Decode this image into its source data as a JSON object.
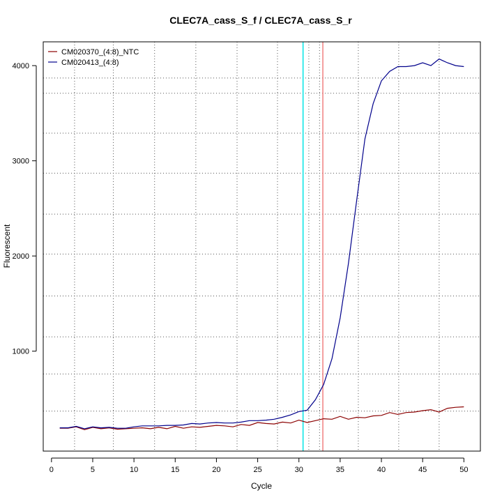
{
  "chart_data": {
    "type": "line",
    "title": "CLEC7A_cass_S_f / CLEC7A_cass_S_r",
    "xlabel": "Cycle",
    "ylabel": "Fluorescent",
    "xlim": [
      -1,
      52
    ],
    "ylim": [
      -50,
      4250
    ],
    "x_ticks": [
      0,
      5,
      10,
      15,
      20,
      25,
      30,
      35,
      40,
      45,
      50
    ],
    "y_ticks": [
      1000,
      2000,
      3000,
      4000
    ],
    "grid_x": [
      2.8,
      7.5,
      12.5,
      17.5,
      22.5,
      27.4,
      31.2,
      32.5,
      37.2,
      42.1,
      47.0
    ],
    "grid_y": [
      370,
      760,
      1150,
      1580,
      2020,
      2440,
      2870,
      3290,
      3710,
      3870
    ],
    "threshold_lines": [
      {
        "x": 30.5,
        "color": "#00e5e5"
      },
      {
        "x": 32.9,
        "color": "#f08080"
      }
    ],
    "legend_position": "top-left",
    "series": [
      {
        "name": "CM020370_(4:8)_NTC",
        "color": "#8b0000",
        "x": [
          1,
          2,
          3,
          4,
          5,
          6,
          7,
          8,
          9,
          10,
          11,
          12,
          13,
          14,
          15,
          16,
          17,
          18,
          19,
          20,
          21,
          22,
          23,
          24,
          25,
          26,
          27,
          28,
          29,
          30,
          31,
          32,
          33,
          34,
          35,
          36,
          37,
          38,
          39,
          40,
          41,
          42,
          43,
          44,
          45,
          46,
          47,
          48,
          49,
          50
        ],
        "values": [
          190,
          190,
          205,
          175,
          200,
          185,
          195,
          180,
          185,
          190,
          195,
          185,
          200,
          185,
          210,
          190,
          205,
          200,
          210,
          220,
          215,
          205,
          230,
          220,
          250,
          240,
          235,
          255,
          245,
          275,
          250,
          270,
          290,
          285,
          315,
          285,
          305,
          300,
          320,
          325,
          355,
          335,
          355,
          360,
          375,
          385,
          360,
          400,
          410,
          415
        ]
      },
      {
        "name": "CM020413_(4:8)",
        "color": "#00008b",
        "x": [
          1,
          2,
          3,
          4,
          5,
          6,
          7,
          8,
          9,
          10,
          11,
          12,
          13,
          14,
          15,
          16,
          17,
          18,
          19,
          20,
          21,
          22,
          23,
          24,
          25,
          26,
          27,
          28,
          29,
          30,
          31,
          32,
          33,
          34,
          35,
          36,
          37,
          38,
          39,
          40,
          41,
          42,
          43,
          44,
          45,
          46,
          47,
          48,
          49,
          50
        ],
        "values": [
          195,
          195,
          210,
          185,
          205,
          195,
          200,
          190,
          190,
          205,
          215,
          215,
          215,
          220,
          220,
          225,
          240,
          235,
          245,
          250,
          245,
          245,
          255,
          270,
          270,
          275,
          285,
          305,
          330,
          365,
          380,
          490,
          650,
          920,
          1350,
          1920,
          2580,
          3230,
          3600,
          3840,
          3940,
          3990,
          3990,
          4000,
          4030,
          4000,
          4070,
          4030,
          4000,
          3990
        ]
      }
    ]
  }
}
